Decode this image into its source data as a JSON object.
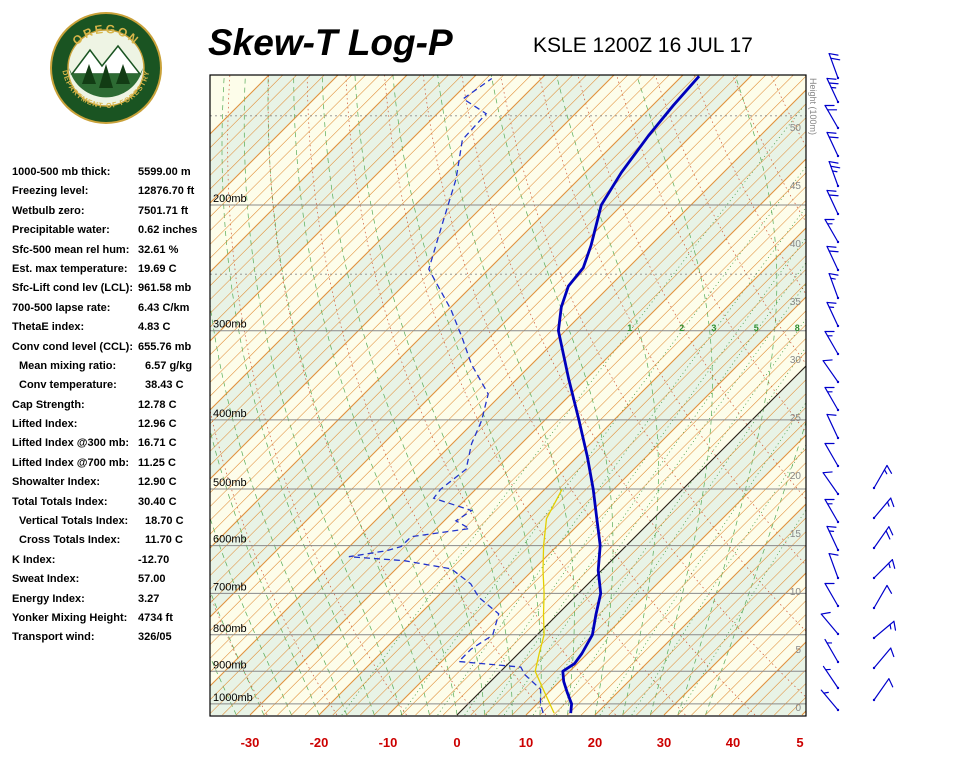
{
  "header": {
    "title": "Skew-T Log-P",
    "station": "KSLE 1200Z 16 JUL 17"
  },
  "logo": {
    "text_top": "OREGON",
    "text_bottom": "DEPARTMENT OF FORESTRY"
  },
  "indices": {
    "rows": [
      {
        "label": "1000-500 mb thick:",
        "value": "5599.00 m"
      },
      {
        "label": "Freezing level:",
        "value": "12876.70 ft"
      },
      {
        "label": "Wetbulb zero:",
        "value": "7501.71 ft"
      },
      {
        "label": "Precipitable water:",
        "value": "0.62 inches"
      },
      {
        "label": "Sfc-500 mean rel hum:",
        "value": "32.61 %"
      },
      {
        "label": "Est. max temperature:",
        "value": "19.69 C"
      },
      {
        "label": "Sfc-Lift cond lev (LCL):",
        "value": "961.58 mb"
      },
      {
        "label": "700-500 lapse rate:",
        "value": "6.43 C/km"
      },
      {
        "label": "ThetaE index:",
        "value": "4.83 C"
      },
      {
        "label": "Conv cond level (CCL):",
        "value": "655.76 mb"
      },
      {
        "label": "Mean mixing ratio:",
        "value": "6.57 g/kg",
        "indent": true
      },
      {
        "label": "Conv temperature:",
        "value": "38.43 C",
        "indent": true
      },
      {
        "label": "Cap Strength:",
        "value": "12.78 C"
      },
      {
        "label": "Lifted Index:",
        "value": "12.96 C"
      },
      {
        "label": "Lifted Index @300 mb:",
        "value": "16.71 C"
      },
      {
        "label": "Lifted Index @700 mb:",
        "value": "11.25 C"
      },
      {
        "label": "Showalter Index:",
        "value": "12.90 C"
      },
      {
        "label": "Total Totals Index:",
        "value": "30.40 C"
      },
      {
        "label": "Vertical Totals Index:",
        "value": "18.70 C",
        "indent": true
      },
      {
        "label": "Cross Totals Index:",
        "value": "11.70 C",
        "indent": true
      },
      {
        "label": "K Index:",
        "value": "-12.70"
      },
      {
        "label": "Sweat Index:",
        "value": "57.00"
      },
      {
        "label": "Energy Index:",
        "value": "3.27"
      },
      {
        "label": "Yonker Mixing Height:",
        "value": "4734 ft"
      },
      {
        "label": "Transport wind:",
        "value": "326/05"
      }
    ]
  },
  "chart_data": {
    "type": "skewt-logp",
    "title": "Skew-T Log-P",
    "station": "KSLE 1200Z 16 JUL 17",
    "pressure_levels_mb": [
      200,
      300,
      400,
      500,
      600,
      700,
      800,
      900,
      1000
    ],
    "minor_pressure_levels_mb": [
      150,
      250
    ],
    "pressure_unit": "mb",
    "temp_ticks_c": [
      -30,
      -20,
      -10,
      0,
      10,
      20,
      30,
      40
    ],
    "right_axis_extra_label": "5",
    "temp_unit": "C",
    "height_axis": {
      "label": "Height (100m)",
      "ticks": [
        50,
        45,
        40,
        35,
        30,
        25,
        20,
        15,
        10,
        5,
        0
      ]
    },
    "mixing_ratio_lines_gkg": [
      1,
      2,
      3,
      4,
      5,
      6,
      8,
      10,
      15,
      20,
      30
    ],
    "mixing_ratio_labels": [
      1,
      2,
      3,
      5,
      8
    ],
    "isotherm_step_c": 2,
    "temperature_profile": [
      [
        1030,
        16.2
      ],
      [
        1000,
        15.0
      ],
      [
        965,
        12.8
      ],
      [
        930,
        10.6
      ],
      [
        900,
        9.0
      ],
      [
        878,
        9.6
      ],
      [
        850,
        9.2
      ],
      [
        800,
        8.0
      ],
      [
        750,
        5.6
      ],
      [
        700,
        3.2
      ],
      [
        650,
        -0.5
      ],
      [
        600,
        -3.8
      ],
      [
        550,
        -8.2
      ],
      [
        500,
        -13.0
      ],
      [
        450,
        -18.6
      ],
      [
        400,
        -25.1
      ],
      [
        350,
        -32.6
      ],
      [
        300,
        -41.0
      ],
      [
        278,
        -44.0
      ],
      [
        260,
        -46.0
      ],
      [
        245,
        -46.5
      ],
      [
        228,
        -48.6
      ],
      [
        200,
        -53.0
      ],
      [
        180,
        -54.8
      ],
      [
        160,
        -56.2
      ],
      [
        145,
        -57.0
      ],
      [
        132,
        -57.5
      ]
    ],
    "dewpoint_profile": [
      [
        1030,
        12.2
      ],
      [
        1000,
        10.5
      ],
      [
        954,
        8.4
      ],
      [
        910,
        4.0
      ],
      [
        888,
        2.3
      ],
      [
        872,
        -7.5
      ],
      [
        838,
        -7.5
      ],
      [
        801,
        -6.4
      ],
      [
        748,
        -8.6
      ],
      [
        709,
        -13.9
      ],
      [
        679,
        -17.0
      ],
      [
        647,
        -22.0
      ],
      [
        630,
        -30.0
      ],
      [
        622,
        -38.6
      ],
      [
        610,
        -34.0
      ],
      [
        602,
        -32.5
      ],
      [
        583,
        -32.5
      ],
      [
        568,
        -25.2
      ],
      [
        554,
        -28.3
      ],
      [
        536,
        -27.5
      ],
      [
        515,
        -34.8
      ],
      [
        500,
        -35.1
      ],
      [
        469,
        -34.3
      ],
      [
        432,
        -37.2
      ],
      [
        401,
        -39.1
      ],
      [
        368,
        -42.0
      ],
      [
        334,
        -48.8
      ],
      [
        307,
        -53.9
      ],
      [
        280,
        -59.7
      ],
      [
        246,
        -68.7
      ],
      [
        216,
        -72.8
      ],
      [
        184,
        -77.8
      ],
      [
        162,
        -82.6
      ],
      [
        149,
        -82.9
      ],
      [
        142,
        -88.4
      ],
      [
        133,
        -87.2
      ]
    ],
    "wetbulb_profile": [
      [
        1030,
        13.8
      ],
      [
        950,
        8.5
      ],
      [
        900,
        5.0
      ],
      [
        850,
        3.0
      ],
      [
        800,
        1.0
      ],
      [
        750,
        -2.0
      ],
      [
        700,
        -5.0
      ],
      [
        650,
        -8.5
      ],
      [
        600,
        -12.0
      ],
      [
        550,
        -15.5
      ],
      [
        500,
        -17.5
      ]
    ],
    "winds_main": [
      [
        78,
        340,
        20
      ],
      [
        102,
        335,
        25
      ],
      [
        128,
        330,
        20
      ],
      [
        156,
        335,
        20
      ],
      [
        186,
        340,
        25
      ],
      [
        214,
        335,
        20
      ],
      [
        242,
        330,
        15
      ],
      [
        270,
        335,
        20
      ],
      [
        298,
        340,
        15
      ],
      [
        326,
        335,
        15
      ],
      [
        354,
        330,
        15
      ],
      [
        382,
        325,
        10
      ],
      [
        410,
        330,
        15
      ],
      [
        438,
        335,
        10
      ],
      [
        466,
        330,
        10
      ],
      [
        494,
        325,
        10
      ],
      [
        522,
        330,
        15
      ],
      [
        550,
        335,
        15
      ],
      [
        578,
        340,
        10
      ],
      [
        606,
        330,
        10
      ],
      [
        634,
        320,
        10
      ],
      [
        662,
        330,
        5
      ],
      [
        688,
        326,
        5
      ],
      [
        710,
        320,
        5
      ]
    ],
    "winds_aux": [
      [
        488,
        30,
        15
      ],
      [
        518,
        40,
        15
      ],
      [
        548,
        35,
        20
      ],
      [
        578,
        45,
        15
      ],
      [
        608,
        30,
        10
      ],
      [
        638,
        50,
        15
      ],
      [
        668,
        40,
        10
      ],
      [
        700,
        35,
        10
      ]
    ],
    "colors": {
      "temperature": "#0000bb",
      "dewpoint": "#2233cc",
      "wetbulb": "#e3cf00",
      "isotherm": "#e1923e",
      "dry_adiabat": "#cc5533",
      "moist_adiabat": "#55aa55",
      "mixing_ratio": "#2f8f2f",
      "band_yellow": "#fdfdea",
      "band_green": "#e8f3e6",
      "wind_barb": "#0000cc",
      "axis_red": "#cc0000",
      "grid": "#8a8a8a",
      "height_text": "#888888",
      "zero_isotherm": "#222222"
    }
  }
}
